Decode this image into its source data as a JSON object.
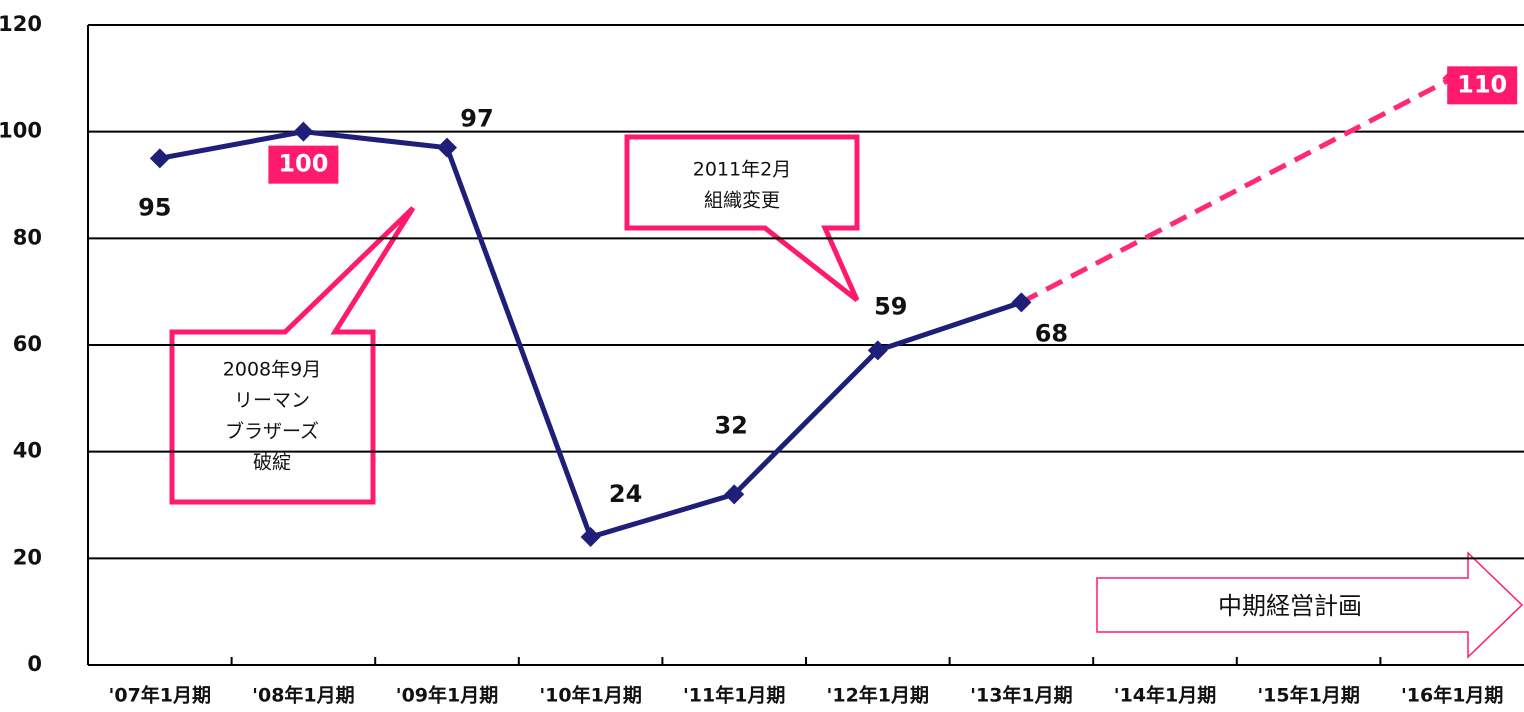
{
  "chart_data": {
    "type": "line",
    "categories": [
      "'07年1月期",
      "'08年1月期",
      "'09年1月期",
      "'10年1月期",
      "'11年1月期",
      "'12年1月期",
      "'13年1月期",
      "'14年1月期",
      "'15年1月期",
      "'16年1月期"
    ],
    "series": [
      {
        "color": "#1f1f7a",
        "values": [
          95,
          100,
          97,
          24,
          32,
          59,
          68,
          null,
          null,
          null
        ]
      },
      {
        "color": "#ff2a77",
        "dashed": true,
        "values": [
          null,
          null,
          null,
          null,
          null,
          null,
          68,
          82,
          96,
          110
        ]
      }
    ],
    "ylim": [
      0,
      120
    ],
    "yticks": [
      0,
      20,
      40,
      60,
      80,
      100,
      120
    ],
    "grid": true,
    "annotations": [
      {
        "lines": [
          "2008年9月",
          "リーマン",
          "ブラザーズ",
          "破綻"
        ]
      },
      {
        "lines": [
          "2011年2月",
          "組織変更"
        ]
      },
      {
        "text": "中期経営計画"
      }
    ]
  }
}
